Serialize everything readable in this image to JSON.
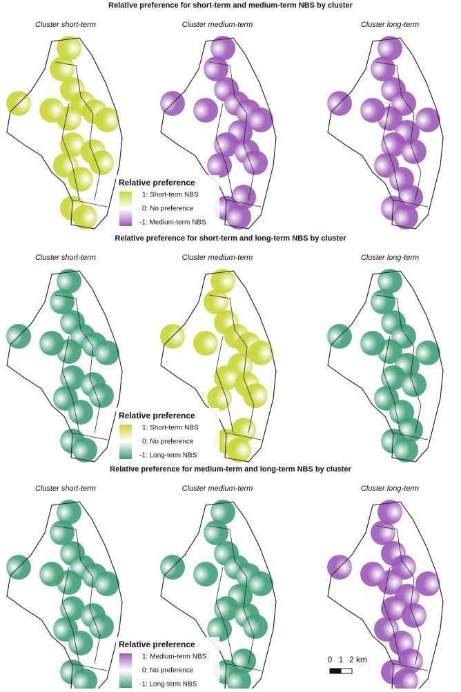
{
  "panels": [
    {
      "title": "Relative preference for short-term and medium-term NBS by cluster",
      "maps": [
        "Cluster short-term",
        "Cluster medium-term",
        "Cluster long-term"
      ],
      "legend": {
        "title": "Relative preference",
        "labels": [
          "1: Short-term NBS",
          "0: No preference",
          "-1: Medium-term NBS"
        ]
      }
    },
    {
      "title": "Relative preference for short-term and long-term NBS by cluster",
      "maps": [
        "Cluster short-term",
        "Cluster medium-term",
        "Cluster long-term"
      ],
      "legend": {
        "title": "Relative preference",
        "labels": [
          "1: Short-term NBS",
          "0: No preference",
          "-1: Long-term NBS"
        ]
      }
    },
    {
      "title": "Relative preference for medium-term and long-term NBS by cluster",
      "maps": [
        "Cluster short-term",
        "Cluster medium-term",
        "Cluster long-term"
      ],
      "legend": {
        "title": "Relative preference",
        "labels": [
          "1: Medium-term NBS",
          "0: No preference",
          "-1: Long-term NBS"
        ]
      }
    }
  ],
  "scale_bar": {
    "labels": [
      "0",
      "1",
      "2 km"
    ]
  }
}
